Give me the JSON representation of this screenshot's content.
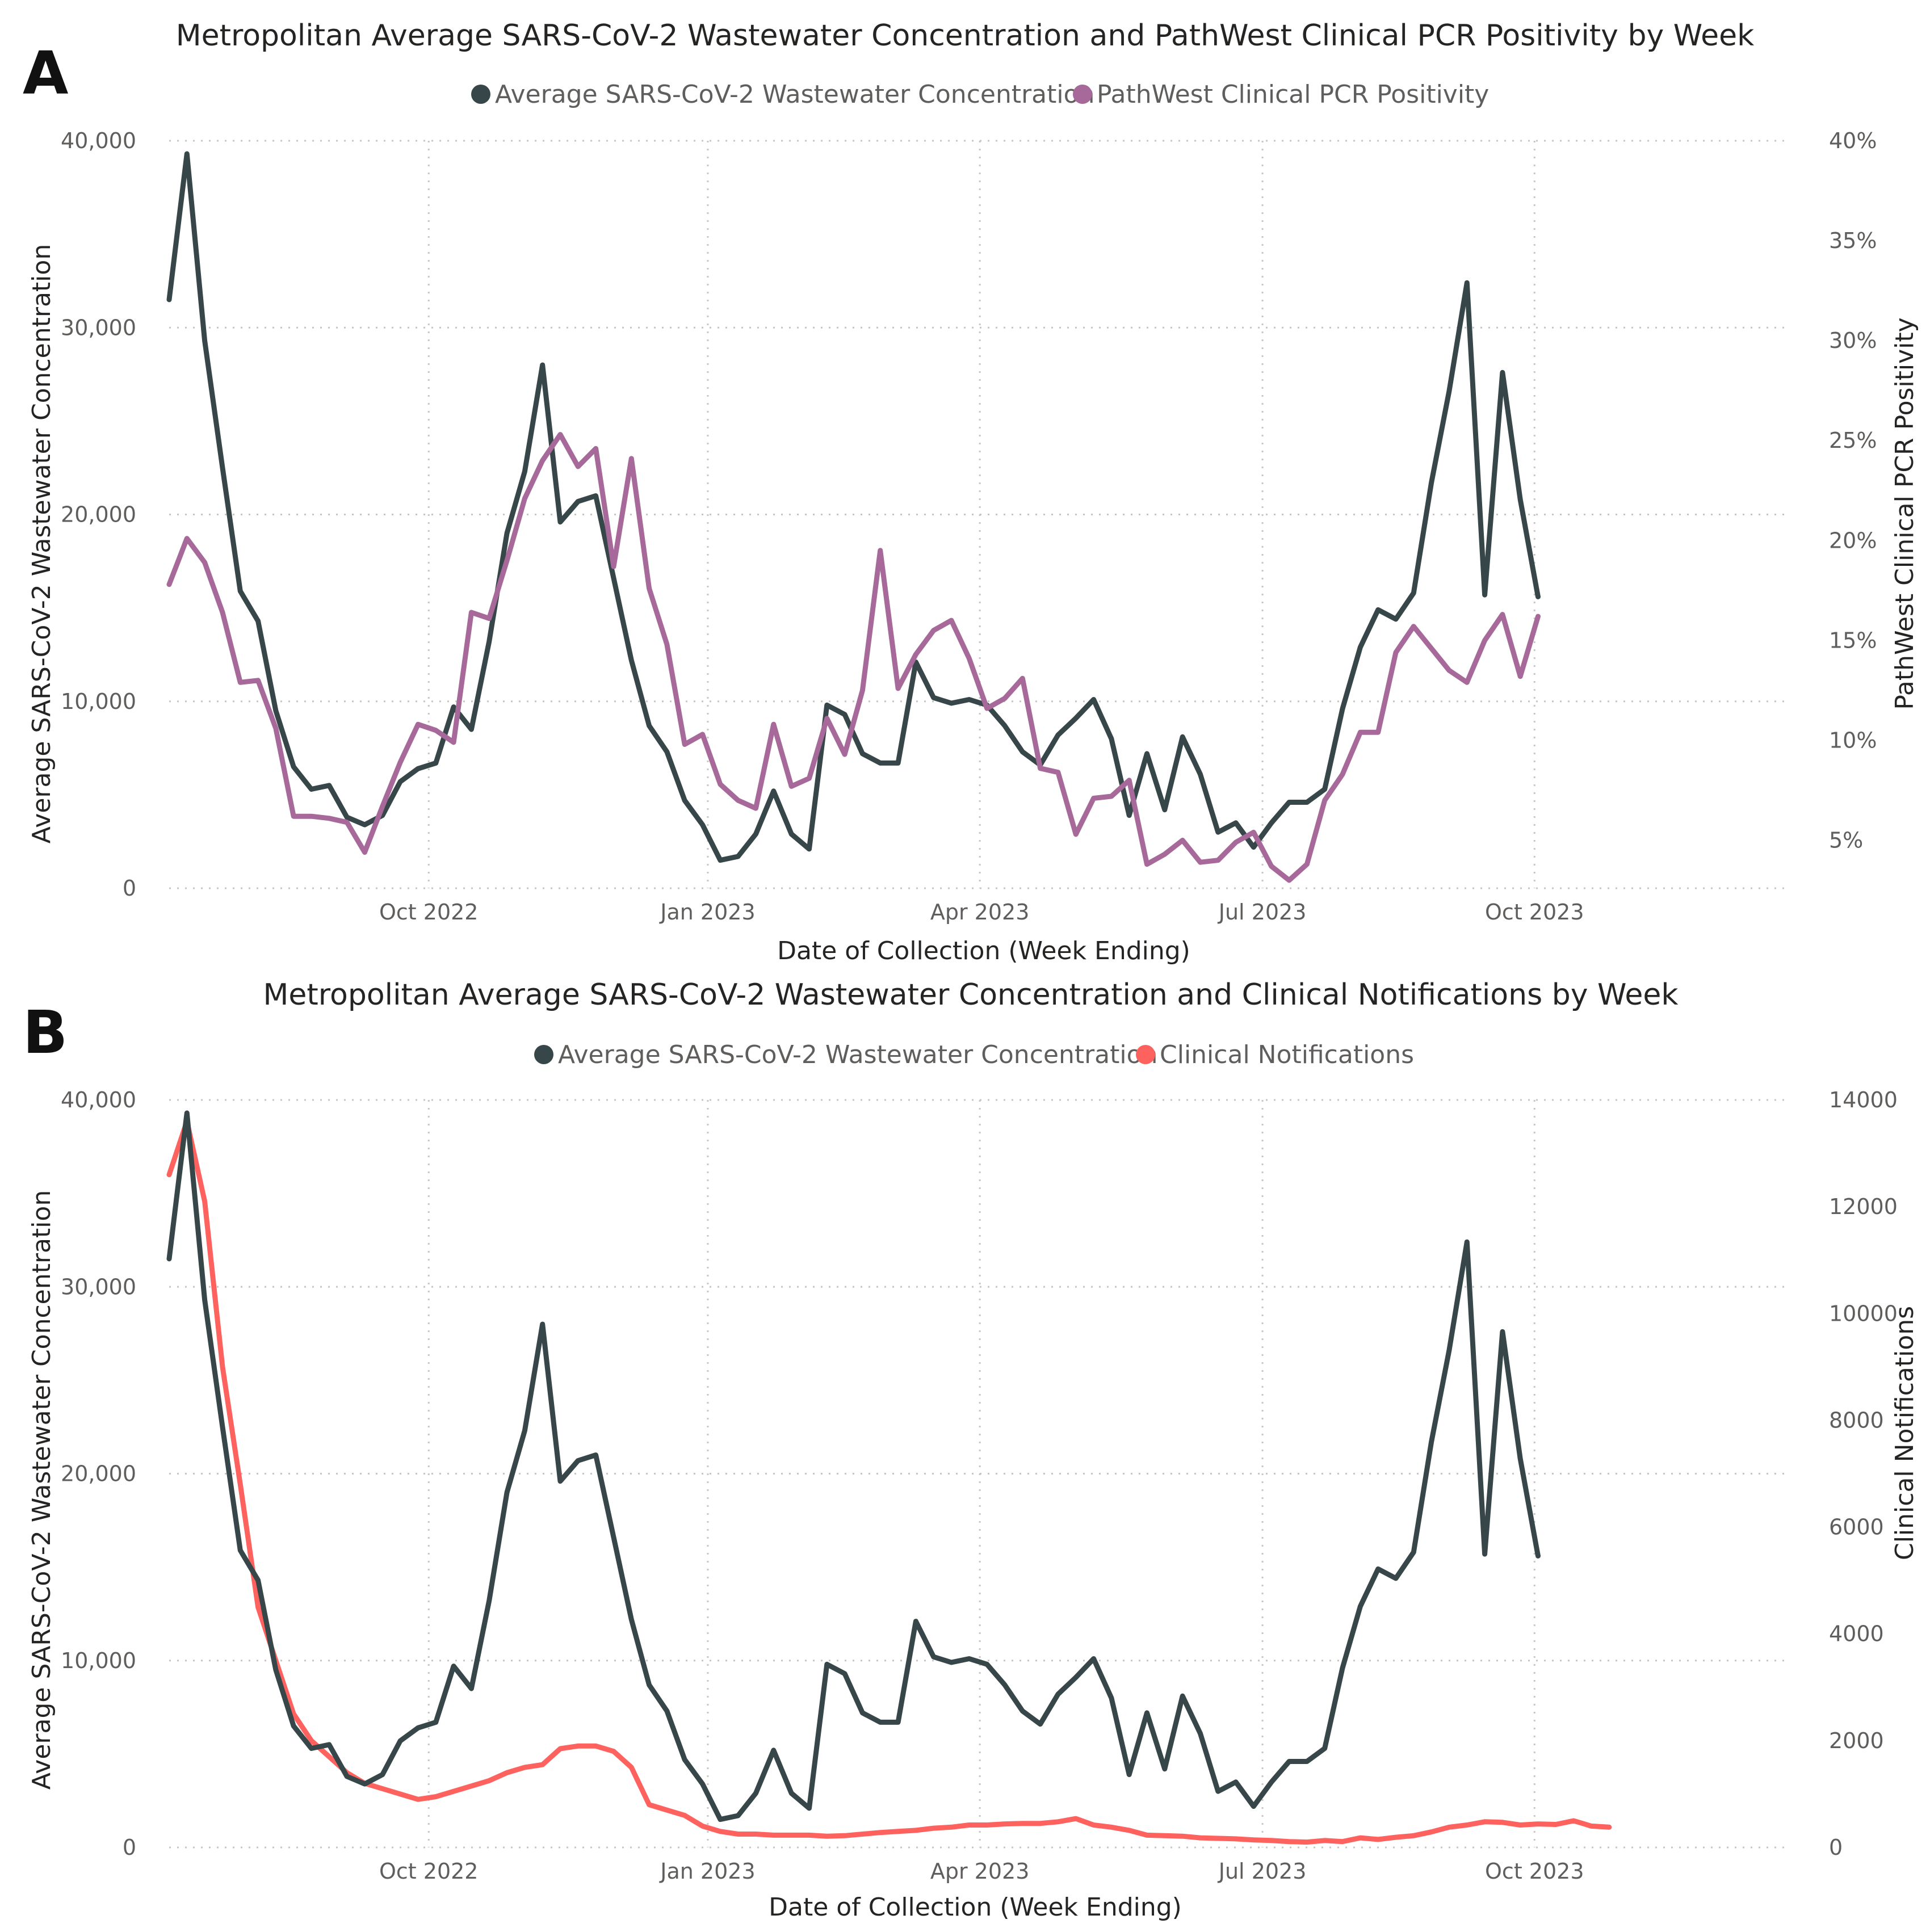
{
  "chart_data": [
    {
      "panel_label": "A",
      "type": "line",
      "title": "Metropolitan Average SARS-CoV-2 Wastewater Concentration and PathWest Clinical PCR Positivity by Week",
      "xlabel": "Date of Collection (Week Ending)",
      "ylabel": "Average SARS-CoV-2 Wastewater Concentration",
      "y2label": "PathWest Clinical PCR Positivity",
      "x_range_weeks": [
        0,
        91
      ],
      "x_ticks": [
        {
          "label": "Oct 2022",
          "week": 14.6
        },
        {
          "label": "Jan 2023",
          "week": 30.3
        },
        {
          "label": "Apr 2023",
          "week": 45.6
        },
        {
          "label": "Jul 2023",
          "week": 61.5
        },
        {
          "label": "Oct 2023",
          "week": 76.8
        }
      ],
      "ylim": [
        0,
        40000
      ],
      "y_ticks": [
        {
          "value": 0,
          "label": "0"
        },
        {
          "value": 10000,
          "label": "10,000"
        },
        {
          "value": 20000,
          "label": "20,000"
        },
        {
          "value": 30000,
          "label": "30,000"
        },
        {
          "value": 40000,
          "label": "40,000"
        }
      ],
      "y2lim": [
        2.6,
        40
      ],
      "y2_ticks": [
        {
          "value": 5,
          "label": "5%"
        },
        {
          "value": 10,
          "label": "10%"
        },
        {
          "value": 15,
          "label": "15%"
        },
        {
          "value": 20,
          "label": "20%"
        },
        {
          "value": 25,
          "label": "25%"
        },
        {
          "value": 30,
          "label": "30%"
        },
        {
          "value": 35,
          "label": "35%"
        },
        {
          "value": 40,
          "label": "40%"
        }
      ],
      "grid": true,
      "legend_position": "top-center",
      "series": [
        {
          "name": "Average SARS-CoV-2 Wastewater Concentration",
          "axis": "left",
          "color": "#374649",
          "values": [
            31500,
            39300,
            29300,
            22500,
            15900,
            14300,
            9500,
            6500,
            5300,
            5500,
            3800,
            3400,
            3900,
            5700,
            6400,
            6700,
            9700,
            8500,
            13200,
            19000,
            22300,
            28000,
            19600,
            20700,
            21000,
            16600,
            12200,
            8700,
            7300,
            4700,
            3400,
            1500,
            1700,
            2900,
            5200,
            2900,
            2100,
            9800,
            9300,
            7200,
            6700,
            6700,
            12100,
            10200,
            9900,
            10100,
            9800,
            8700,
            7300,
            6600,
            8200,
            9100,
            10100,
            8000,
            3900,
            7200,
            4200,
            8100,
            6100,
            3000,
            3500,
            2200,
            3500,
            4600,
            4600,
            5300,
            9600,
            12900,
            14900,
            14400,
            15800,
            21700,
            26600,
            32400,
            15700,
            27600,
            20800,
            15600
          ]
        },
        {
          "name": "PathWest Clinical PCR Positivity",
          "axis": "right",
          "color": "#a66999",
          "values": [
            17.8,
            20.1,
            18.9,
            16.4,
            12.9,
            13.0,
            10.6,
            6.2,
            6.2,
            6.1,
            5.9,
            4.4,
            6.7,
            8.9,
            10.8,
            10.5,
            9.9,
            16.4,
            16.1,
            19.0,
            22.1,
            24.0,
            25.3,
            23.7,
            24.6,
            18.7,
            24.1,
            17.6,
            14.8,
            9.8,
            10.3,
            7.8,
            7.0,
            6.6,
            10.8,
            7.7,
            8.1,
            11.1,
            9.3,
            12.5,
            19.5,
            12.6,
            14.3,
            15.5,
            16.0,
            14.1,
            11.6,
            12.1,
            13.1,
            8.6,
            8.4,
            5.3,
            7.1,
            7.2,
            8.0,
            3.8,
            4.3,
            5.0,
            3.9,
            4.0,
            4.9,
            5.4,
            3.7,
            3.0,
            3.8,
            7.0,
            8.3,
            10.4,
            10.4,
            14.4,
            15.7,
            14.6,
            13.5,
            12.9,
            15.0,
            16.3,
            13.2,
            16.2
          ]
        }
      ]
    },
    {
      "panel_label": "B",
      "type": "line",
      "title": "Metropolitan Average SARS-CoV-2 Wastewater Concentration and Clinical Notifications by Week",
      "xlabel": "Date of Collection (Week Ending)",
      "ylabel": "Average SARS-CoV-2 Wastewater Concentration",
      "y2label": "Clinical Notifications",
      "x_range_weeks": [
        0,
        91
      ],
      "x_ticks": [
        {
          "label": "Oct 2022",
          "week": 14.6
        },
        {
          "label": "Jan 2023",
          "week": 30.3
        },
        {
          "label": "Apr 2023",
          "week": 45.6
        },
        {
          "label": "Jul 2023",
          "week": 61.5
        },
        {
          "label": "Oct 2023",
          "week": 76.8
        }
      ],
      "ylim": [
        0,
        40000
      ],
      "y_ticks": [
        {
          "value": 0,
          "label": "0"
        },
        {
          "value": 10000,
          "label": "10,000"
        },
        {
          "value": 20000,
          "label": "20,000"
        },
        {
          "value": 30000,
          "label": "30,000"
        },
        {
          "value": 40000,
          "label": "40,000"
        }
      ],
      "y2lim": [
        0,
        14000
      ],
      "y2_ticks": [
        {
          "value": 0,
          "label": "0"
        },
        {
          "value": 2000,
          "label": "2000"
        },
        {
          "value": 4000,
          "label": "4000"
        },
        {
          "value": 6000,
          "label": "6000"
        },
        {
          "value": 8000,
          "label": "8000"
        },
        {
          "value": 10000,
          "label": "10000"
        },
        {
          "value": 12000,
          "label": "12000"
        },
        {
          "value": 14000,
          "label": "14000"
        }
      ],
      "grid": true,
      "legend_position": "top-center",
      "series": [
        {
          "name": "Average SARS-CoV-2 Wastewater Concentration",
          "axis": "left",
          "color": "#374649",
          "values": [
            31500,
            39300,
            29300,
            22500,
            15900,
            14300,
            9500,
            6500,
            5300,
            5500,
            3800,
            3400,
            3900,
            5700,
            6400,
            6700,
            9700,
            8500,
            13200,
            19000,
            22300,
            28000,
            19600,
            20700,
            21000,
            16600,
            12200,
            8700,
            7300,
            4700,
            3400,
            1500,
            1700,
            2900,
            5200,
            2900,
            2100,
            9800,
            9300,
            7200,
            6700,
            6700,
            12100,
            10200,
            9900,
            10100,
            9800,
            8700,
            7300,
            6600,
            8200,
            9100,
            10100,
            8000,
            3900,
            7200,
            4200,
            8100,
            6100,
            3000,
            3500,
            2200,
            3500,
            4600,
            4600,
            5300,
            9600,
            12900,
            14900,
            14400,
            15800,
            21700,
            26600,
            32400,
            15700,
            27600,
            20800,
            15600
          ]
        },
        {
          "name": "Clinical Notifications",
          "axis": "right",
          "color": "#fd625e",
          "values": [
            12600,
            13600,
            12100,
            9000,
            6800,
            4500,
            3500,
            2500,
            2000,
            1700,
            1400,
            1200,
            1100,
            1000,
            900,
            950,
            1050,
            1150,
            1250,
            1400,
            1500,
            1550,
            1850,
            1900,
            1900,
            1800,
            1500,
            800,
            700,
            600,
            400,
            300,
            250,
            250,
            230,
            230,
            230,
            210,
            220,
            250,
            280,
            300,
            320,
            360,
            380,
            420,
            420,
            440,
            450,
            450,
            480,
            540,
            420,
            380,
            320,
            230,
            220,
            210,
            180,
            170,
            160,
            140,
            130,
            110,
            100,
            130,
            110,
            180,
            150,
            190,
            220,
            290,
            380,
            420,
            480,
            470,
            420,
            440,
            430,
            500,
            400,
            380
          ]
        }
      ]
    }
  ]
}
